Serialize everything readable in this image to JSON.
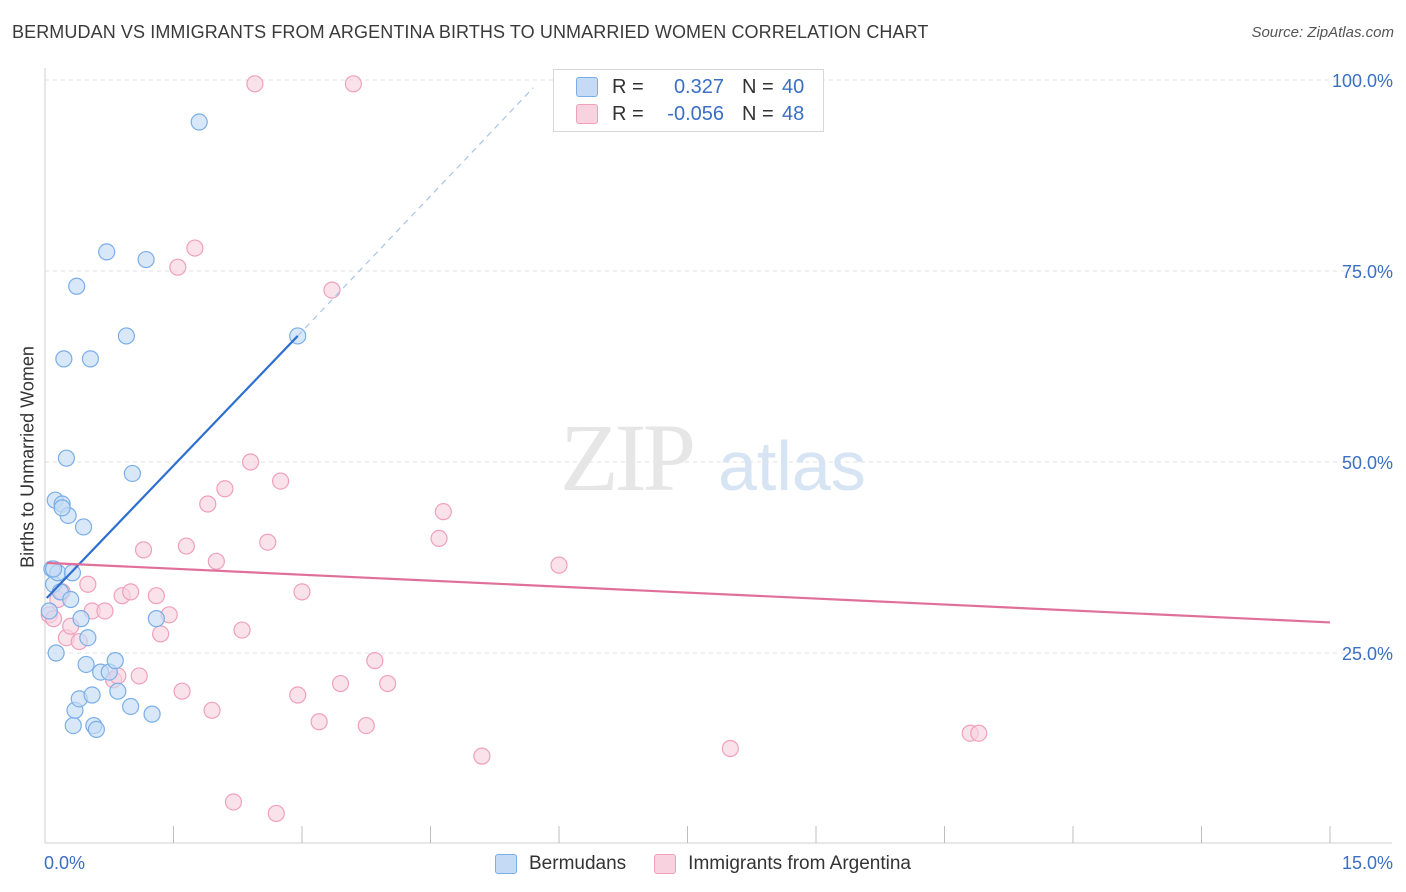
{
  "chart_data": {
    "type": "scatter",
    "title": "BERMUDAN VS IMMIGRANTS FROM ARGENTINA BIRTHS TO UNMARRIED WOMEN CORRELATION CHART",
    "source": "Source: ZipAtlas.com",
    "xlabel": "",
    "ylabel": "Births to Unmarried Women",
    "xlim": [
      0,
      15
    ],
    "ylim": [
      0,
      102
    ],
    "x_tick_labels": [
      "0.0%",
      "15.0%"
    ],
    "y_tick_labels": [
      "25.0%",
      "50.0%",
      "75.0%",
      "100.0%"
    ],
    "y_ticks": [
      25,
      50,
      75,
      100
    ],
    "grid": true,
    "watermark": {
      "zip": "ZIP",
      "atlas": "atlas"
    },
    "legend_stats": [
      {
        "r_label": "R =",
        "r_value": "0.327",
        "n_label": "N =",
        "n_value": "40"
      },
      {
        "r_label": "R =",
        "r_value": "-0.056",
        "n_label": "N =",
        "n_value": "48"
      }
    ],
    "series": [
      {
        "name": "Bermudans",
        "color": "#7aaee8",
        "fill": "#c5dbf5",
        "trend_color": "#2e6fd0",
        "trend_solid": [
          [
            0.02,
            32.2
          ],
          [
            2.95,
            66.5
          ]
        ],
        "trend_dashed": [
          [
            2.95,
            66.5
          ],
          [
            5.7,
            99.0
          ]
        ],
        "points": [
          [
            0.05,
            30.5
          ],
          [
            0.08,
            36.0
          ],
          [
            0.1,
            34.0
          ],
          [
            0.12,
            45.0
          ],
          [
            0.13,
            25.0
          ],
          [
            0.15,
            35.5
          ],
          [
            0.18,
            33.0
          ],
          [
            0.2,
            44.5
          ],
          [
            0.22,
            63.5
          ],
          [
            0.25,
            50.5
          ],
          [
            0.27,
            43.0
          ],
          [
            0.3,
            32.0
          ],
          [
            0.32,
            35.5
          ],
          [
            0.33,
            15.5
          ],
          [
            0.35,
            17.5
          ],
          [
            0.37,
            73.0
          ],
          [
            0.4,
            19.0
          ],
          [
            0.42,
            29.5
          ],
          [
            0.45,
            41.5
          ],
          [
            0.48,
            23.5
          ],
          [
            0.5,
            27.0
          ],
          [
            0.53,
            63.5
          ],
          [
            0.55,
            19.5
          ],
          [
            0.57,
            15.5
          ],
          [
            0.6,
            15.0
          ],
          [
            0.65,
            22.5
          ],
          [
            0.72,
            77.5
          ],
          [
            0.75,
            22.5
          ],
          [
            0.82,
            24.0
          ],
          [
            0.85,
            20.0
          ],
          [
            0.95,
            66.5
          ],
          [
            1.0,
            18.0
          ],
          [
            1.02,
            48.5
          ],
          [
            1.18,
            76.5
          ],
          [
            1.25,
            17.0
          ],
          [
            1.3,
            29.5
          ],
          [
            1.8,
            94.5
          ],
          [
            2.95,
            66.5
          ],
          [
            0.1,
            36.0
          ],
          [
            0.2,
            44.0
          ]
        ]
      },
      {
        "name": "Immigrants from Argentina",
        "color": "#f0a0bb",
        "fill": "#f8d3df",
        "trend_color": "#e0709a",
        "trend_solid": [
          [
            0.02,
            36.8
          ],
          [
            15.0,
            29.0
          ]
        ],
        "points": [
          [
            0.05,
            30.0
          ],
          [
            0.1,
            29.5
          ],
          [
            0.15,
            32.0
          ],
          [
            0.2,
            33.0
          ],
          [
            0.25,
            27.0
          ],
          [
            0.3,
            28.5
          ],
          [
            0.4,
            26.5
          ],
          [
            0.5,
            34.0
          ],
          [
            0.55,
            30.5
          ],
          [
            0.7,
            30.5
          ],
          [
            0.8,
            21.5
          ],
          [
            0.85,
            22.0
          ],
          [
            0.9,
            32.5
          ],
          [
            1.0,
            33.0
          ],
          [
            1.1,
            22.0
          ],
          [
            1.15,
            38.5
          ],
          [
            1.3,
            32.5
          ],
          [
            1.35,
            27.5
          ],
          [
            1.45,
            30.0
          ],
          [
            1.55,
            75.5
          ],
          [
            1.6,
            20.0
          ],
          [
            1.65,
            39.0
          ],
          [
            1.75,
            78.0
          ],
          [
            1.9,
            44.5
          ],
          [
            1.95,
            17.5
          ],
          [
            2.0,
            37.0
          ],
          [
            2.1,
            46.5
          ],
          [
            2.2,
            5.5
          ],
          [
            2.3,
            28.0
          ],
          [
            2.4,
            50.0
          ],
          [
            2.45,
            99.5
          ],
          [
            2.6,
            39.5
          ],
          [
            2.7,
            4.0
          ],
          [
            2.75,
            47.5
          ],
          [
            2.95,
            19.5
          ],
          [
            3.0,
            33.0
          ],
          [
            3.2,
            16.0
          ],
          [
            3.35,
            72.5
          ],
          [
            3.45,
            21.0
          ],
          [
            3.6,
            99.5
          ],
          [
            3.75,
            15.5
          ],
          [
            3.85,
            24.0
          ],
          [
            4.0,
            21.0
          ],
          [
            4.6,
            40.0
          ],
          [
            4.65,
            43.5
          ],
          [
            5.1,
            11.5
          ],
          [
            6.0,
            36.5
          ],
          [
            8.0,
            12.5
          ]
        ],
        "extra_points": [
          [
            10.8,
            14.5
          ],
          [
            10.9,
            14.5
          ]
        ]
      }
    ]
  }
}
